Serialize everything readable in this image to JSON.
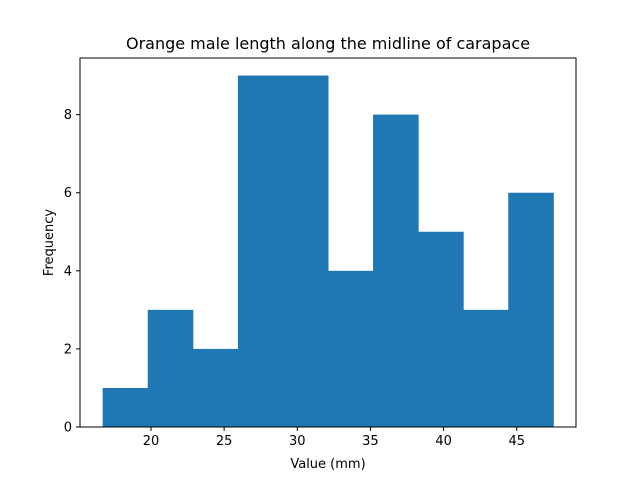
{
  "chart_data": {
    "type": "bar",
    "subtype": "histogram",
    "title": "Orange male length along the midline of carapace",
    "xlabel": "Value (mm)",
    "ylabel": "Frequency",
    "xlim": [
      15.15,
      49.05
    ],
    "ylim": [
      0,
      9.45
    ],
    "x_ticks": [
      20,
      25,
      30,
      35,
      40,
      45
    ],
    "y_ticks": [
      0,
      2,
      4,
      6,
      8
    ],
    "bin_edges": [
      16.7,
      19.78,
      22.86,
      25.94,
      29.02,
      32.1,
      35.18,
      38.26,
      41.34,
      44.42,
      47.5
    ],
    "values": [
      1,
      3,
      2,
      9,
      9,
      4,
      8,
      5,
      3,
      6
    ],
    "bar_color": "#1f77b4",
    "grid": false,
    "legend": "none"
  }
}
